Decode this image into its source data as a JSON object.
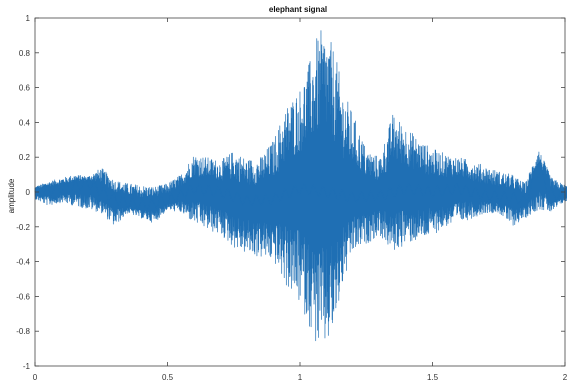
{
  "chart_data": {
    "type": "line",
    "title": "elephant signal",
    "xlabel": "",
    "ylabel": "amplitude",
    "xlim": [
      0,
      2
    ],
    "ylim": [
      -1,
      1
    ],
    "xticks": [
      0,
      0.5,
      1,
      1.5,
      2
    ],
    "yticks": [
      -1,
      -0.8,
      -0.6,
      -0.4,
      -0.2,
      0,
      0.2,
      0.4,
      0.6,
      0.8,
      1
    ],
    "xtick_labels": [
      "0",
      "0.5",
      "1",
      "1.5",
      "2"
    ],
    "ytick_labels": [
      "-1",
      "-0.8",
      "-0.6",
      "-0.4",
      "-0.2",
      "0",
      "0.2",
      "0.4",
      "0.6",
      "0.8",
      "1"
    ],
    "grid": false,
    "series": [
      {
        "color": "#1f6fb4",
        "x_start": 0.0,
        "x_end": 2.06,
        "envelope": {
          "t": [
            0.0,
            0.05,
            0.1,
            0.15,
            0.2,
            0.25,
            0.3,
            0.35,
            0.4,
            0.45,
            0.5,
            0.55,
            0.6,
            0.65,
            0.7,
            0.75,
            0.8,
            0.85,
            0.9,
            0.95,
            1.0,
            1.03,
            1.06,
            1.08,
            1.1,
            1.13,
            1.16,
            1.2,
            1.25,
            1.3,
            1.35,
            1.4,
            1.45,
            1.5,
            1.55,
            1.6,
            1.65,
            1.7,
            1.75,
            1.8,
            1.85,
            1.9,
            1.95,
            2.0,
            2.06
          ],
          "upper": [
            0.03,
            0.06,
            0.08,
            0.1,
            0.09,
            0.14,
            0.07,
            0.05,
            0.04,
            0.03,
            0.05,
            0.1,
            0.22,
            0.2,
            0.18,
            0.24,
            0.19,
            0.2,
            0.3,
            0.5,
            0.6,
            0.72,
            0.88,
            0.93,
            0.92,
            0.82,
            0.6,
            0.45,
            0.25,
            0.2,
            0.45,
            0.38,
            0.3,
            0.25,
            0.22,
            0.2,
            0.18,
            0.15,
            0.12,
            0.1,
            0.05,
            0.25,
            0.08,
            0.04,
            0.03
          ],
          "lower": [
            -0.04,
            -0.08,
            -0.06,
            -0.08,
            -0.1,
            -0.12,
            -0.2,
            -0.12,
            -0.15,
            -0.18,
            -0.1,
            -0.12,
            -0.18,
            -0.22,
            -0.25,
            -0.32,
            -0.36,
            -0.38,
            -0.4,
            -0.55,
            -0.65,
            -0.75,
            -0.88,
            -0.92,
            -0.9,
            -0.8,
            -0.55,
            -0.35,
            -0.3,
            -0.25,
            -0.35,
            -0.3,
            -0.28,
            -0.25,
            -0.2,
            -0.18,
            -0.15,
            -0.12,
            -0.12,
            -0.2,
            -0.15,
            -0.1,
            -0.12,
            -0.05,
            -0.03
          ]
        },
        "trend": {
          "t": [
            0.0,
            0.1,
            0.2,
            0.3,
            0.4,
            0.5,
            0.6,
            0.7,
            0.8,
            0.9,
            1.0,
            1.1,
            1.2,
            1.3,
            1.4,
            1.5,
            1.6,
            1.7,
            1.8,
            1.85,
            1.9,
            1.95,
            2.06
          ],
          "values": [
            0.0,
            0.02,
            0.05,
            -0.04,
            -0.08,
            -0.05,
            0.02,
            0.0,
            -0.05,
            -0.04,
            0.02,
            0.0,
            -0.03,
            -0.02,
            0.02,
            0.0,
            0.02,
            -0.02,
            -0.03,
            -0.05,
            0.12,
            -0.02,
            -0.02
          ]
        }
      }
    ]
  }
}
